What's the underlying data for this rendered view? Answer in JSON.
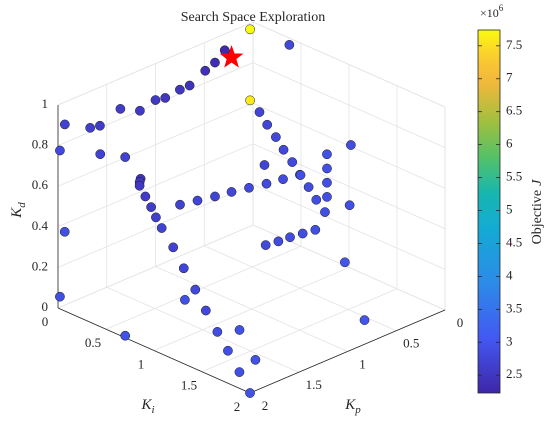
{
  "chart_data": {
    "type": "scatter3d",
    "title": "Search Space Exploration",
    "xlabel": {
      "text": "K",
      "subscript": "p"
    },
    "ylabel": {
      "text": "K",
      "subscript": "i"
    },
    "zlabel": {
      "text": "K",
      "subscript": "d"
    },
    "x": [
      2,
      2,
      2,
      2,
      2,
      2,
      2,
      2,
      2,
      2,
      2,
      2,
      2,
      1.98,
      1.96,
      1.94,
      1.8,
      1.66,
      1.52,
      1.38,
      1.24,
      1.1,
      0.96,
      0.79,
      0.78,
      0.76,
      0.75,
      0.73,
      0.72,
      0.7,
      0.69,
      0.67,
      0.6,
      0.6,
      0.6,
      0.6,
      1.93,
      1.67,
      1.57,
      1.36,
      1.16,
      1,
      0.9,
      0.75,
      0.65,
      0.49,
      0.39,
      0.29,
      0.25,
      0.03,
      0.03,
      2,
      2,
      2,
      2,
      2,
      2,
      1.24,
      1.31,
      1.58,
      0.54,
      0.2,
      0.03,
      0.22,
      0.08,
      0.67,
      1.13,
      1.02,
      0.91,
      0.8,
      0.69
    ],
    "y": [
      0.85,
      0.91,
      0.97,
      1.02,
      1.08,
      1.2,
      1.31,
      1.43,
      1.54,
      1.66,
      1.77,
      1.89,
      2,
      0.83,
      0.82,
      1.21,
      1.25,
      1.29,
      1.32,
      1.36,
      1.4,
      1.43,
      1.47,
      0.87,
      0.94,
      1.01,
      1.08,
      1.15,
      1.22,
      1.29,
      1.36,
      1.43,
      1.38,
      1.38,
      1.38,
      1.38,
      0,
      0,
      0,
      0,
      0,
      0,
      0,
      0,
      0,
      0,
      0,
      0,
      0,
      0,
      0,
      0.02,
      0.07,
      0.02,
      0.44,
      0.7,
      0.7,
      0.55,
      1.19,
      1.63,
      1.71,
      1.16,
      1.05,
      1.23,
      0.46,
      0.8,
      1.28,
      1.3,
      1.31,
      1.33,
      1.35
    ],
    "z": [
      0.78,
      0.74,
      0.7,
      0.66,
      0.62,
      0.55,
      0.47,
      0.39,
      0.31,
      0.23,
      0.16,
      0.08,
      0,
      0.79,
      0.8,
      0.75,
      0.75,
      0.75,
      0.75,
      0.75,
      0.75,
      0.75,
      0.75,
      0.9,
      0.85,
      0.8,
      0.75,
      0.7,
      0.65,
      0.6,
      0.55,
      0.5,
      0.55,
      0.62,
      0.69,
      0.76,
      0.89,
      0.82,
      0.81,
      0.85,
      0.8,
      0.82,
      0.81,
      0.82,
      0.82,
      0.86,
      0.88,
      0.92,
      0.89,
      0.97,
      0.62,
      0.78,
      0.39,
      0.06,
      0.85,
      0.89,
      0.01,
      0,
      0,
      0,
      0,
      0.1,
      0.62,
      0.4,
      1,
      0.6,
      0.4,
      0.4,
      0.4,
      0.4,
      0.4
    ],
    "color_values": [
      2.55,
      2.6,
      2.6,
      2.65,
      2.7,
      2.7,
      2.75,
      2.8,
      2.8,
      2.85,
      2.9,
      2.9,
      2.95,
      2.5,
      2.45,
      2.7,
      2.72,
      2.75,
      2.78,
      2.8,
      2.82,
      2.85,
      2.9,
      2.75,
      2.78,
      2.8,
      2.8,
      2.82,
      2.85,
      2.85,
      2.88,
      2.9,
      2.9,
      2.9,
      2.92,
      2.95,
      2.7,
      2.65,
      2.6,
      2.6,
      2.55,
      2.55,
      2.5,
      2.5,
      2.45,
      2.4,
      2.35,
      2.3,
      2.28,
      7.74,
      7.6,
      2.8,
      2.9,
      2.9,
      2.7,
      2.7,
      2.95,
      2.9,
      2.95,
      2.95,
      3.0,
      3.0,
      2.85,
      2.9,
      2.8,
      2.75,
      2.82,
      2.84,
      2.86,
      2.88,
      2.9
    ],
    "best": {
      "x": 0.22,
      "y": 0,
      "z": 0.87,
      "color": "#ff0000"
    },
    "xlim": [
      0,
      2
    ],
    "ylim": [
      0,
      2
    ],
    "zlim": [
      0,
      1
    ],
    "xticks": [
      0,
      0.5,
      1,
      1.5,
      2
    ],
    "yticks": [
      0,
      0.5,
      1,
      1.5,
      2
    ],
    "zticks": [
      0,
      0.2,
      0.4,
      0.6,
      0.8,
      1
    ],
    "grid": true,
    "colormap": "parula",
    "colorbar": {
      "label": {
        "text": "Objective",
        "italic": "J"
      },
      "exponent": {
        "base": "×10",
        "superscript": "6"
      },
      "clim": [
        2.23,
        7.74
      ],
      "ticks": [
        2.5,
        3,
        3.5,
        4,
        4.5,
        5,
        5.5,
        6,
        6.5,
        7,
        7.5
      ]
    }
  }
}
